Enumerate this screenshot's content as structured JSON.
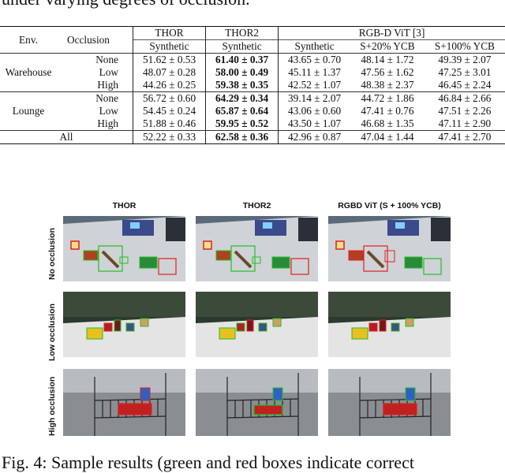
{
  "caption_top": "under varying degrees of occlusion.",
  "table": {
    "headers": {
      "env": "Env.",
      "occlusion": "Occlusion",
      "thor": "THOR",
      "thor2": "THOR2",
      "rgbd": "RGB-D ViT [3]",
      "sub_thor": "Synthetic",
      "sub_thor2": "Synthetic",
      "sub_rgbd1": "Synthetic",
      "sub_rgbd2": "S+20% YCB",
      "sub_rgbd3": "S+100% YCB"
    },
    "rows": [
      {
        "env": "Warehouse",
        "occ": "None",
        "v": [
          "51.62 ± 0.53",
          "61.40 ± 0.37",
          "43.65 ± 0.70",
          "48.14 ± 1.72",
          "49.39 ± 2.07"
        ]
      },
      {
        "env": "",
        "occ": "Low",
        "v": [
          "48.07 ± 0.28",
          "58.00 ± 0.49",
          "45.11 ± 1.37",
          "47.56 ± 1.62",
          "47.25 ± 3.01"
        ]
      },
      {
        "env": "",
        "occ": "High",
        "v": [
          "44.26 ± 0.25",
          "59.38 ± 0.35",
          "42.52 ± 1.07",
          "48.38 ± 2.37",
          "46.45 ± 2.24"
        ]
      },
      {
        "env": "Lounge",
        "occ": "None",
        "v": [
          "56.72 ± 0.60",
          "64.29 ± 0.34",
          "39.14 ± 2.07",
          "44.72 ± 1.86",
          "46.84 ± 2.66"
        ]
      },
      {
        "env": "",
        "occ": "Low",
        "v": [
          "54.45 ± 0.24",
          "65.87 ± 0.64",
          "43.06 ± 0.60",
          "47.41 ± 0.76",
          "47.51 ± 2.26"
        ]
      },
      {
        "env": "",
        "occ": "High",
        "v": [
          "51.88 ± 0.46",
          "59.95 ± 0.52",
          "43.50 ± 1.07",
          "46.68 ± 1.35",
          "47.11 ± 2.90"
        ]
      }
    ],
    "all": {
      "label": "All",
      "v": [
        "52.22 ± 0.33",
        "62.58 ± 0.36",
        "42.96 ± 0.87",
        "47.04 ± 1.44",
        "47.41 ± 2.70"
      ]
    }
  },
  "figure": {
    "col_titles": [
      "THOR",
      "THOR2",
      "RGBD ViT (S + 100% YCB)"
    ],
    "row_titles": [
      "No occlusion",
      "Low occlusion",
      "High occlusion"
    ]
  },
  "caption_bottom": "Fig. 4: Sample results (green and red boxes indicate correct"
}
